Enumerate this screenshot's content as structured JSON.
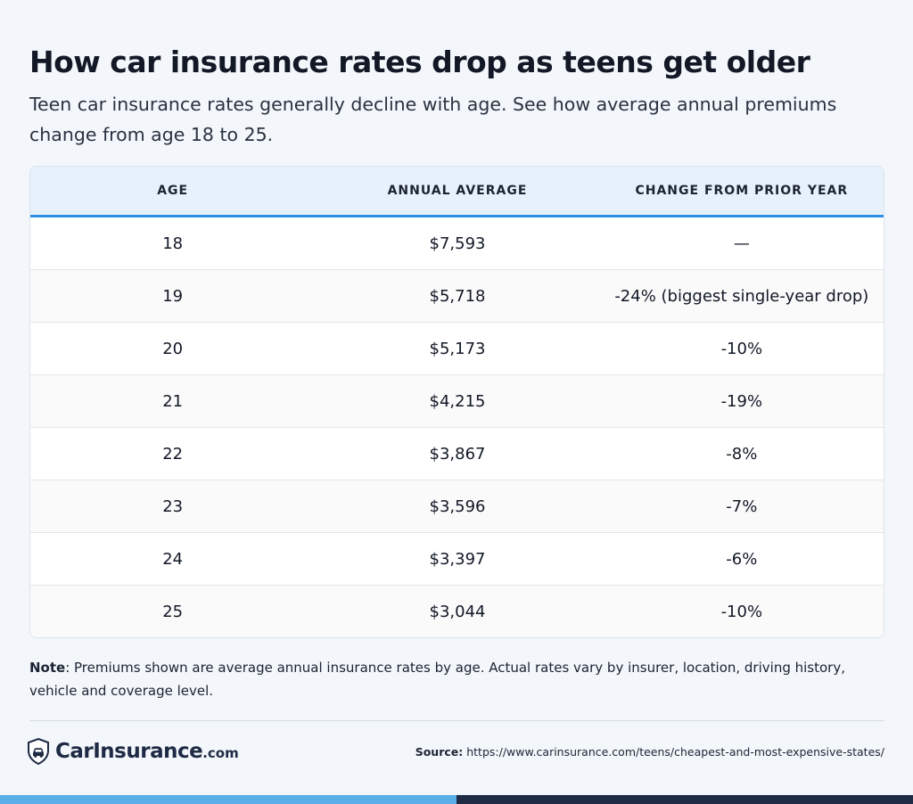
{
  "header": {
    "title": "How car insurance rates drop as teens get older",
    "subtitle": "Teen car insurance rates generally decline with age. See how average annual premiums change from age 18 to 25."
  },
  "chart_data": {
    "type": "table",
    "columns": [
      "AGE",
      "ANNUAL AVERAGE",
      "CHANGE FROM PRIOR YEAR"
    ],
    "rows": [
      {
        "age": "18",
        "annual_average": "$7,593",
        "change": "—"
      },
      {
        "age": "19",
        "annual_average": "$5,718",
        "change": "-24% (biggest single-year drop)"
      },
      {
        "age": "20",
        "annual_average": "$5,173",
        "change": "-10%"
      },
      {
        "age": "21",
        "annual_average": "$4,215",
        "change": "-19%"
      },
      {
        "age": "22",
        "annual_average": "$3,867",
        "change": "-8%"
      },
      {
        "age": "23",
        "annual_average": "$3,596",
        "change": "-7%"
      },
      {
        "age": "24",
        "annual_average": "$3,397",
        "change": "-6%"
      },
      {
        "age": "25",
        "annual_average": "$3,044",
        "change": "-10%"
      }
    ]
  },
  "note": {
    "label": "Note",
    "text": ": Premiums shown are average annual insurance rates by age. Actual rates vary by insurer, location, driving history, vehicle and coverage level."
  },
  "footer": {
    "logo_main": "CarInsurance",
    "logo_suffix": ".com",
    "logo_icon": "shield-car-icon",
    "source_label": "Source:",
    "source_url": "https://www.carinsurance.com/teens/cheapest-and-most-expensive-states/"
  },
  "colors": {
    "header_bg": "#e7f1fb",
    "header_accent": "#2f8fe3",
    "bar_left": "#5aaee8",
    "bar_right": "#1f2a44"
  }
}
